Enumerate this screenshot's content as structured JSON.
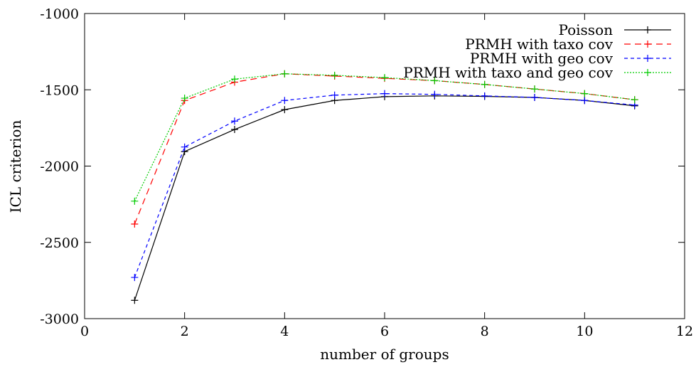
{
  "chart_data": {
    "type": "line",
    "title": "",
    "xlabel": "number of groups",
    "ylabel": "ICL criterion",
    "xlim": [
      0,
      12
    ],
    "ylim": [
      -3000,
      -1000
    ],
    "xticks": [
      "0",
      "2",
      "4",
      "6",
      "8",
      "10",
      "12"
    ],
    "yticks": [
      "-1000",
      "-1500",
      "-2000",
      "-2500",
      "-3000"
    ],
    "grid": false,
    "legend_position": "top-right",
    "x": [
      1,
      2,
      3,
      4,
      5,
      6,
      7,
      8,
      9,
      10,
      11
    ],
    "series": [
      {
        "name": "Poisson",
        "color": "#000000",
        "dash": "solid",
        "values": [
          -2880,
          -1905,
          -1760,
          -1630,
          -1570,
          -1545,
          -1540,
          -1543,
          -1550,
          -1570,
          -1605
        ]
      },
      {
        "name": "PRMH with taxo cov",
        "color": "#ff0000",
        "dash": "dashed",
        "values": [
          -2380,
          -1570,
          -1450,
          -1395,
          -1410,
          -1425,
          -1440,
          -1465,
          -1495,
          -1525,
          -1565
        ]
      },
      {
        "name": "PRMH with geo cov",
        "color": "#0000ff",
        "dash": "dotted-dashed",
        "values": [
          -2730,
          -1875,
          -1705,
          -1570,
          -1535,
          -1525,
          -1530,
          -1540,
          -1550,
          -1570,
          -1600
        ]
      },
      {
        "name": "PRMH with taxo and geo cov",
        "color": "#00cc00",
        "dash": "dotted",
        "values": [
          -2230,
          -1555,
          -1430,
          -1395,
          -1405,
          -1420,
          -1440,
          -1465,
          -1495,
          -1525,
          -1565
        ]
      }
    ]
  }
}
